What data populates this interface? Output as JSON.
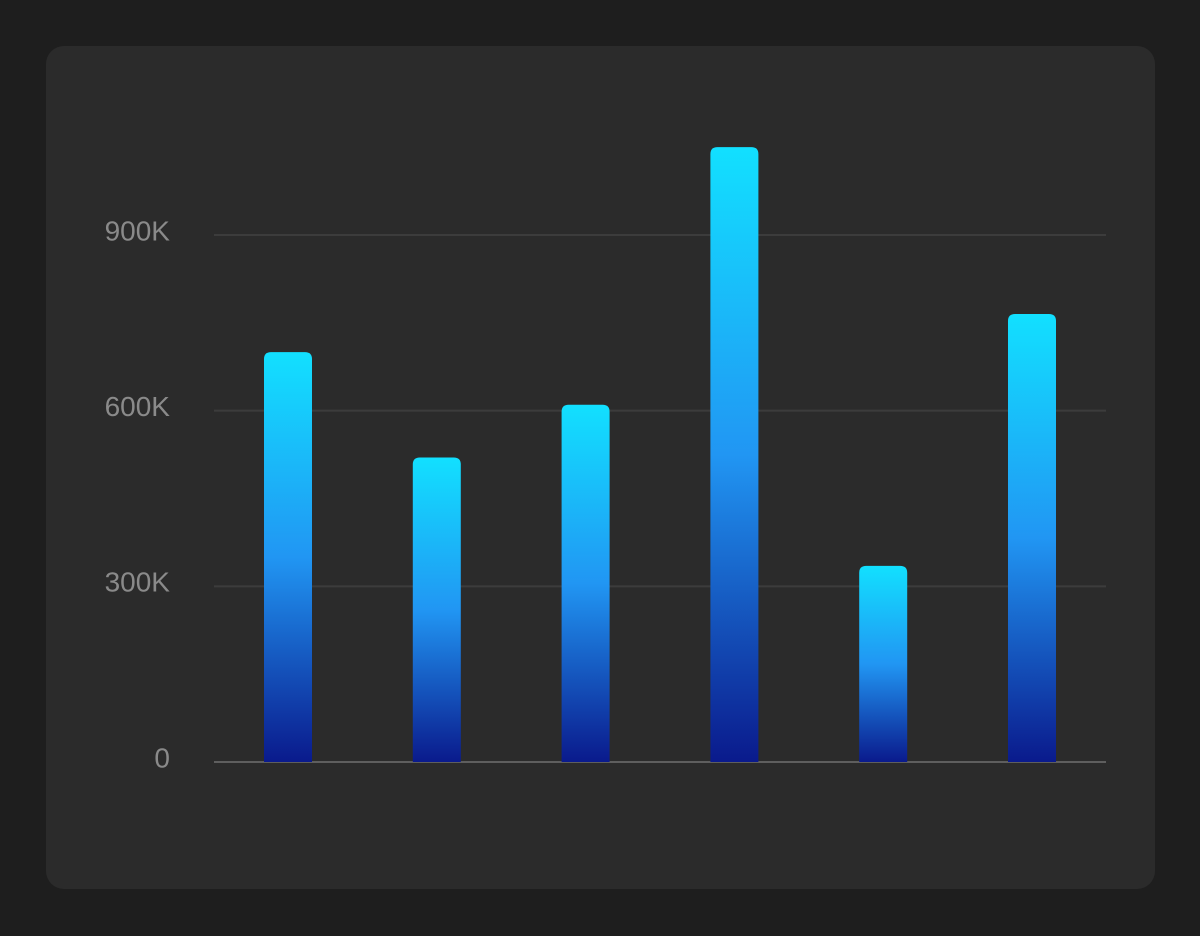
{
  "chart_data": {
    "type": "bar",
    "categories": [
      "",
      "",
      "",
      "",
      "",
      ""
    ],
    "values": [
      700000,
      520000,
      610000,
      1050000,
      335000,
      765000
    ],
    "yticks": [
      0,
      300000,
      600000,
      900000
    ],
    "ytick_labels": [
      "0",
      "300K",
      "600K",
      "900K"
    ],
    "ylim": [
      0,
      1200000
    ],
    "title": "",
    "xlabel": "",
    "ylabel": "",
    "grid": true,
    "legend": "none"
  },
  "colors": {
    "background": "#1e1e1e",
    "card": "#2b2b2b",
    "bar_top": "#12e0ff",
    "bar_mid": "#2196f3",
    "bar_bottom": "#0a1a8c"
  }
}
